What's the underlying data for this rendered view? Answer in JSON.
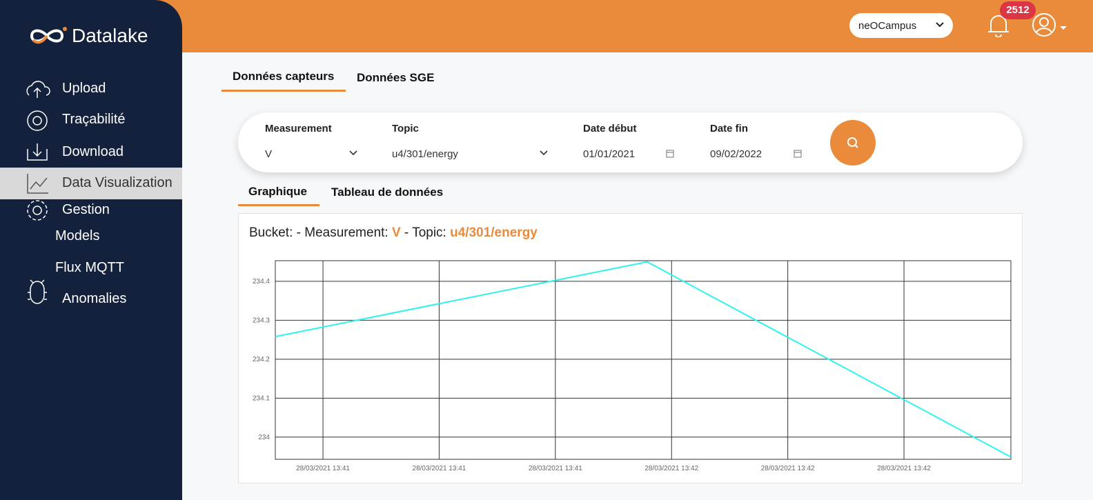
{
  "sidebar": {
    "logo": "Datalake",
    "nav": [
      "Upload",
      "Traçabilité",
      "Download",
      "Data Visualization",
      "Gestion",
      "Models",
      "Flux MQTT",
      "Anomalies"
    ]
  },
  "header": {
    "project": "neOCampus",
    "notifications": "2512"
  },
  "tabs": [
    "Données capteurs",
    "Données SGE"
  ],
  "filters": [
    {
      "label": "Measurement",
      "value": "V"
    },
    {
      "label": "Topic",
      "value": "u4/301/energy"
    },
    {
      "label": "Date début",
      "value": "01/01/2021"
    },
    {
      "label": "Date fin",
      "value": "09/02/2022"
    }
  ],
  "view_tabs": [
    "Graphique",
    "Tableau de données"
  ],
  "card": {
    "title": [
      "Bucket: - Measurement: ",
      "V",
      " - Topic: ",
      "u4/301/energy"
    ]
  },
  "chart_data": {
    "type": "line",
    "color": "#2ef2f2",
    "grid": true,
    "x": [
      25.9,
      57.9,
      89.2
    ],
    "values": [
      234.258,
      234.45,
      233.949
    ],
    "xlim": [
      25.9,
      89.2
    ],
    "ylim": [
      233.943,
      234.453
    ],
    "xticks": [
      {
        "value": 30,
        "label": "28/03/2021 13:41"
      },
      {
        "value": 40,
        "label": "28/03/2021 13:41"
      },
      {
        "value": 50,
        "label": "28/03/2021 13:41"
      },
      {
        "value": 60,
        "label": "28/03/2021 13:42"
      },
      {
        "value": 70,
        "label": "28/03/2021 13:42"
      },
      {
        "value": 80,
        "label": "28/03/2021 13:42"
      }
    ],
    "yticks": [
      234,
      234.1,
      234.2,
      234.3,
      234.4
    ]
  }
}
